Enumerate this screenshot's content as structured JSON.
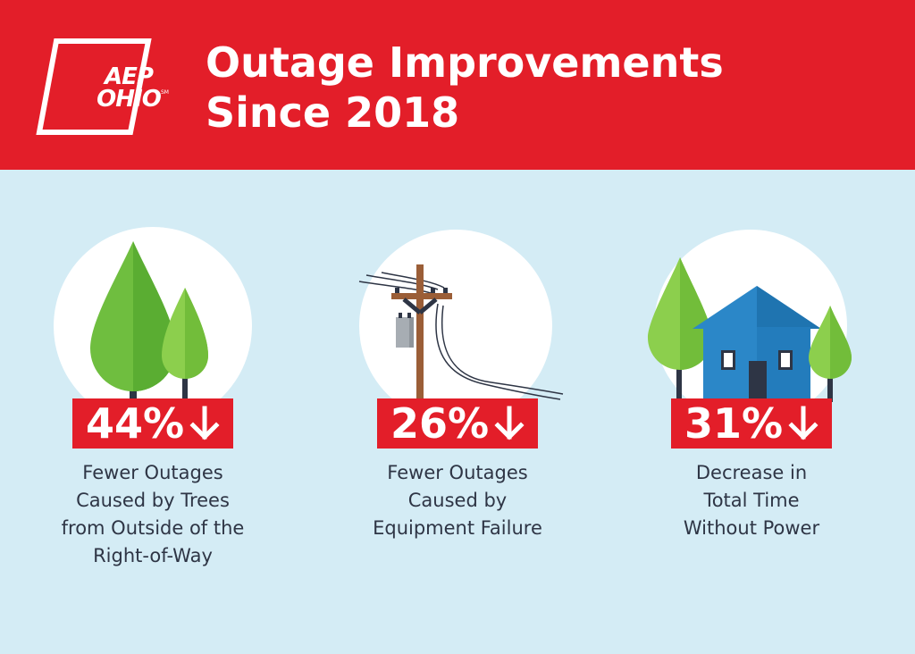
{
  "header": {
    "logo": {
      "line1": "AEP",
      "line2": "OHIO",
      "mark": "SM"
    },
    "title_line1": "Outage Improvements",
    "title_line2": "Since 2018"
  },
  "colors": {
    "brand_red": "#e31e29",
    "background_light_blue": "#d4ecf5",
    "text_dark": "#2e3545",
    "tree_green": "#6fbe3f",
    "house_blue": "#2b87c8"
  },
  "stats": [
    {
      "value": "44%",
      "direction_icon": "down-arrow-icon",
      "illustration": "trees-icon",
      "caption_lines": [
        "Fewer Outages",
        "Caused by Trees",
        "from Outside of the",
        "Right-of-Way"
      ]
    },
    {
      "value": "26%",
      "direction_icon": "down-arrow-icon",
      "illustration": "utility-pole-icon",
      "caption_lines": [
        "Fewer Outages",
        "Caused by",
        "Equipment Failure"
      ]
    },
    {
      "value": "31%",
      "direction_icon": "down-arrow-icon",
      "illustration": "house-icon",
      "caption_lines": [
        "Decrease in",
        "Total Time",
        "Without Power"
      ]
    }
  ]
}
